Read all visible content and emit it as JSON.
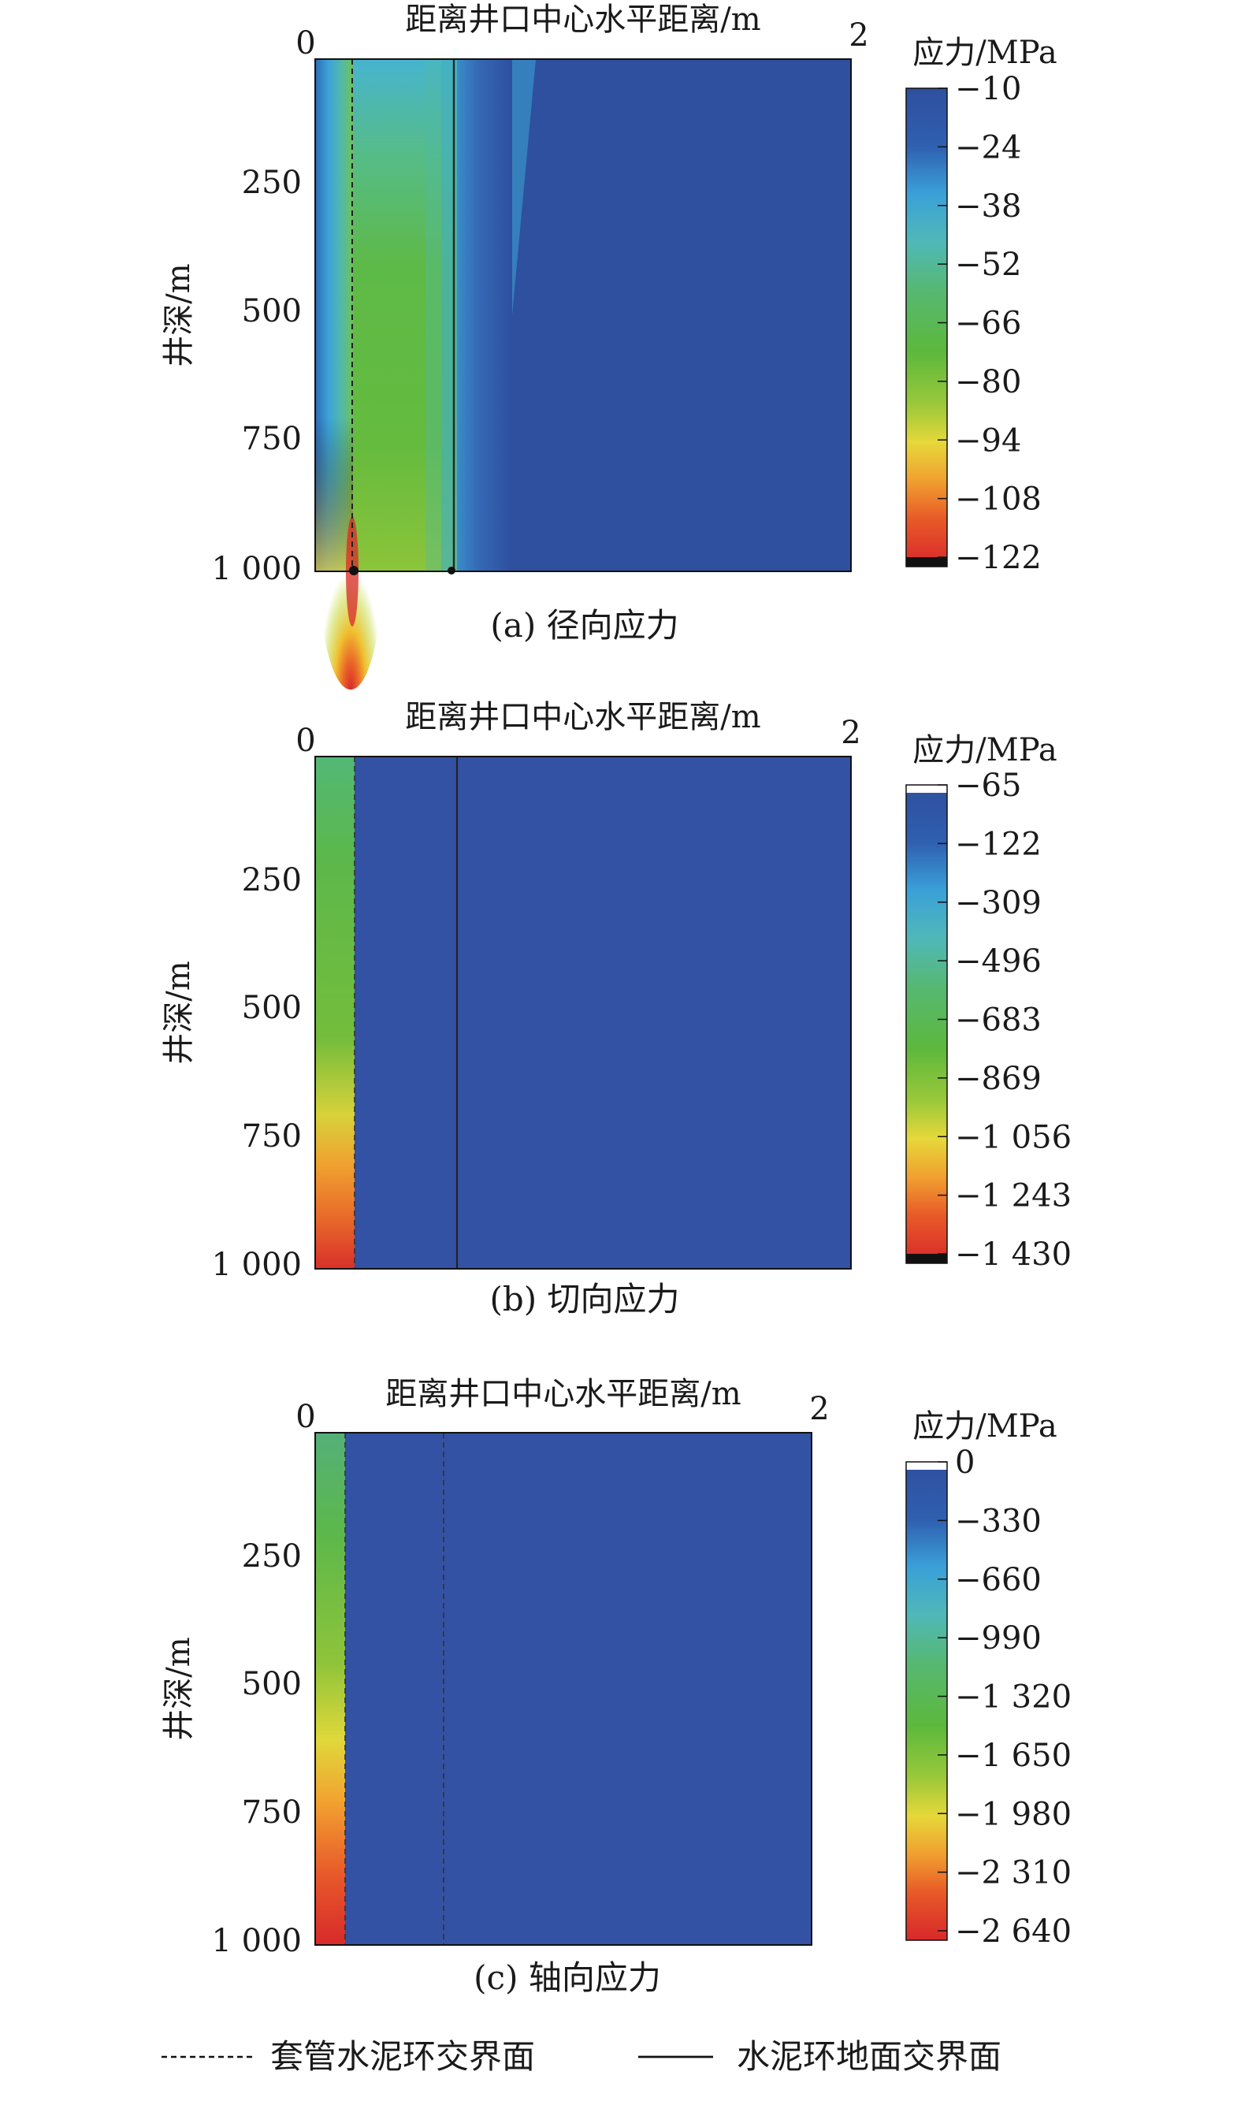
{
  "legend": {
    "dashed_label": "套管水泥环交界面",
    "solid_label": "水泥环地面交界面"
  },
  "chart_data": [
    {
      "type": "heatmap",
      "subtitle": "(a) 径向应力",
      "xlabel": "距离井口中心水平距离/m",
      "ylabel": "井深/m",
      "x_ticks": [
        "0",
        "2"
      ],
      "y_ticks": [
        "0",
        "250",
        "500",
        "750",
        "1 000"
      ],
      "xlim": [
        0,
        2
      ],
      "ylim": [
        0,
        1000
      ],
      "colorbar_title": "应力/MPa",
      "colorbar_ticks": [
        "−10",
        "−24",
        "−38",
        "−52",
        "−66",
        "−80",
        "−94",
        "−108",
        "−122"
      ],
      "colorbar_range": [
        -10,
        -122
      ],
      "casing_cement_interface_x": 0.13,
      "cement_formation_interface_x": 0.5
    },
    {
      "type": "heatmap",
      "subtitle": "(b) 切向应力",
      "xlabel": "距离井口中心水平距离/m",
      "ylabel": "井深/m",
      "x_ticks": [
        "0",
        "2"
      ],
      "y_ticks": [
        "0",
        "250",
        "500",
        "750",
        "1 000"
      ],
      "xlim": [
        0,
        2
      ],
      "ylim": [
        0,
        1000
      ],
      "colorbar_title": "应力/MPa",
      "colorbar_ticks": [
        "−65",
        "−122",
        "−309",
        "−496",
        "−683",
        "−869",
        "−1 056",
        "−1 243",
        "−1 430"
      ],
      "colorbar_range": [
        -65,
        -1430
      ],
      "casing_cement_interface_x": 0.13,
      "cement_formation_interface_x": 0.52
    },
    {
      "type": "heatmap",
      "subtitle": "(c) 轴向应力",
      "xlabel": "距离井口中心水平距离/m",
      "ylabel": "井深/m",
      "x_ticks": [
        "0",
        "2"
      ],
      "y_ticks": [
        "0",
        "250",
        "500",
        "750",
        "1 000"
      ],
      "xlim": [
        0,
        2
      ],
      "ylim": [
        0,
        1000
      ],
      "colorbar_title": "应力/MPa",
      "colorbar_ticks": [
        "0",
        "−330",
        "−660",
        "−990",
        "−1 320",
        "−1 650",
        "−1 980",
        "−2 310",
        "−2 640"
      ],
      "colorbar_range": [
        0,
        -2640
      ],
      "casing_cement_interface_x": 0.1,
      "cement_formation_interface_x": 0.5
    }
  ]
}
